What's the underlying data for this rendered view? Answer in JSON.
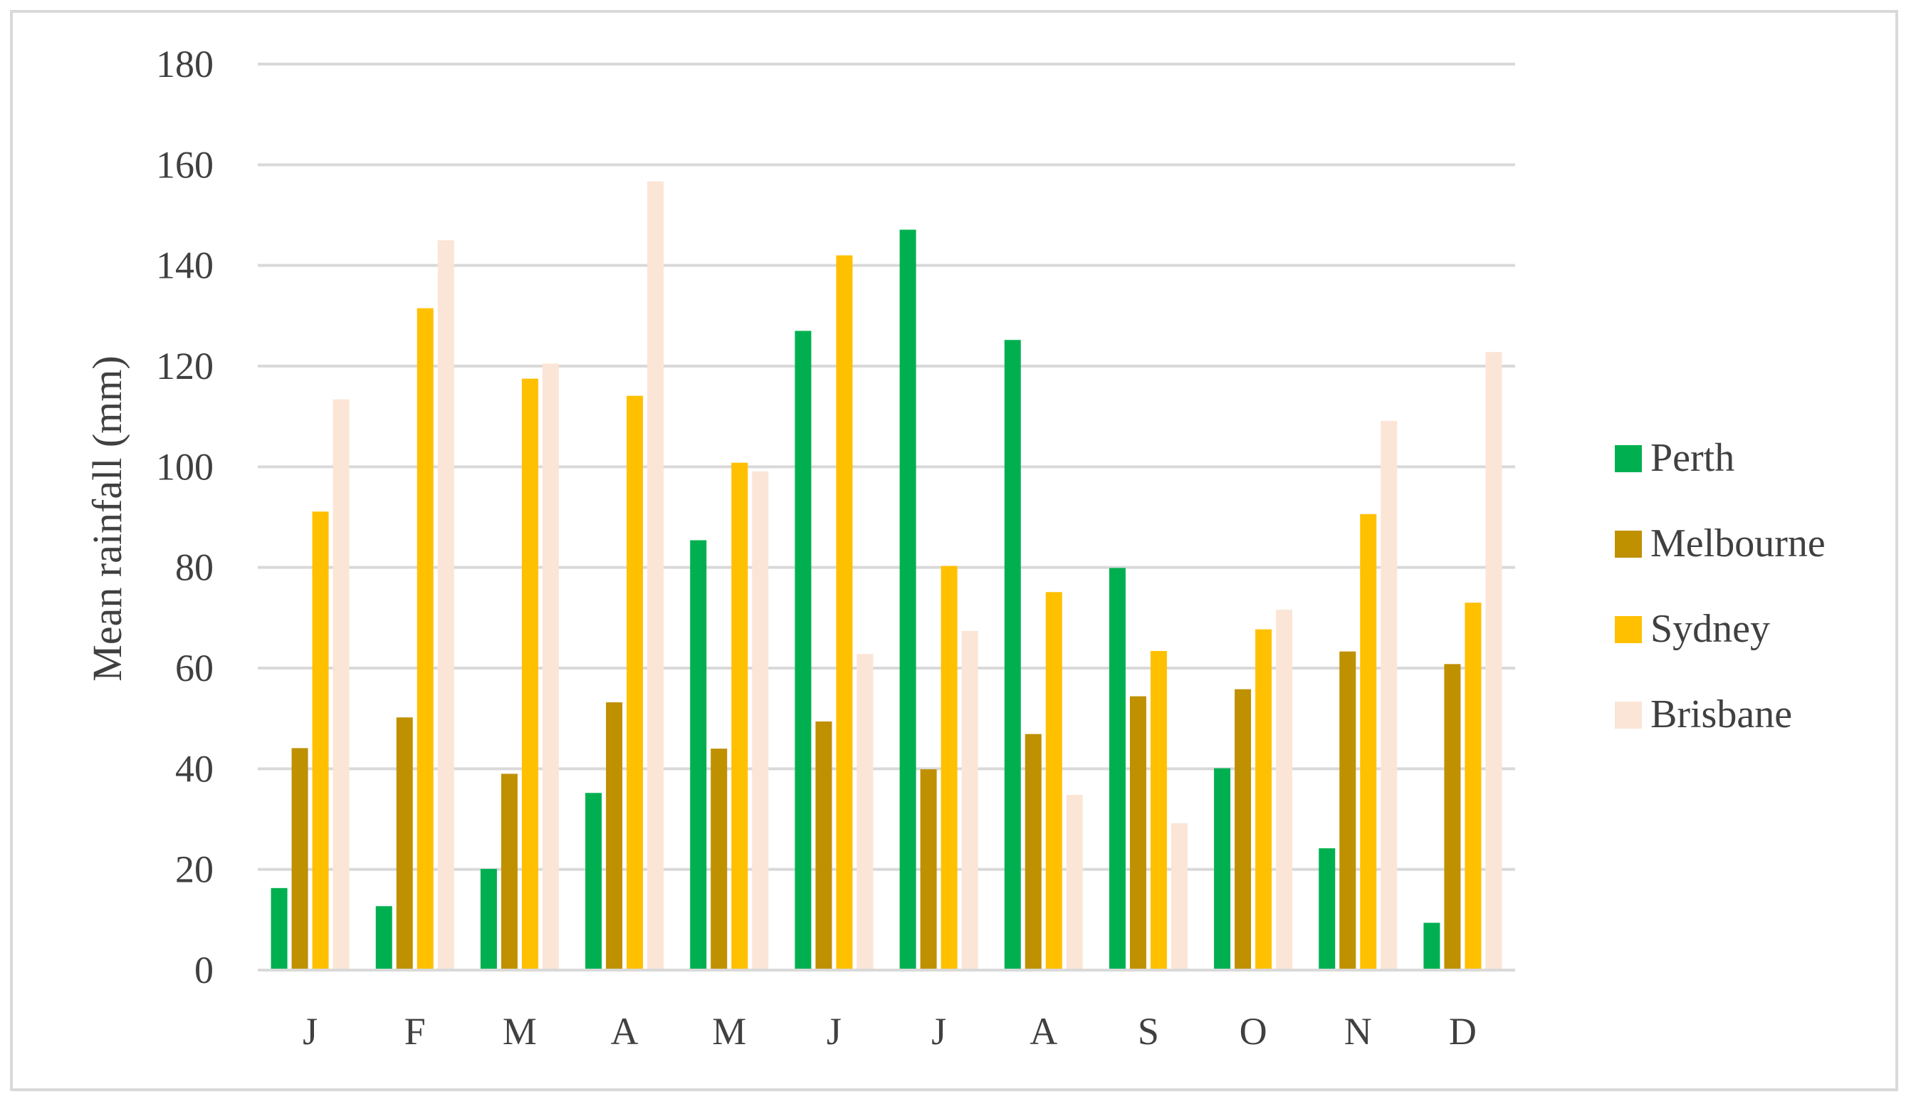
{
  "chart_data": {
    "type": "bar",
    "title": "",
    "xlabel": "",
    "ylabel": "Mean rainfall (mm)",
    "categories": [
      "J",
      "F",
      "M",
      "A",
      "M",
      "J",
      "J",
      "A",
      "S",
      "O",
      "N",
      "D"
    ],
    "ylim": [
      0,
      180
    ],
    "yticks": [
      0,
      20,
      40,
      60,
      80,
      100,
      120,
      140,
      160,
      180
    ],
    "grid": true,
    "legend_position": "right",
    "series": [
      {
        "name": "Perth",
        "color": "#00b050",
        "values": [
          16.3,
          12.7,
          20.1,
          35.2,
          85.4,
          127.0,
          147.1,
          125.2,
          79.9,
          40.1,
          24.2,
          9.4
        ]
      },
      {
        "name": "Melbourne",
        "color": "#bf9000",
        "values": [
          44.1,
          50.2,
          39.0,
          53.2,
          44.0,
          49.4,
          39.9,
          46.9,
          54.4,
          55.8,
          63.3,
          60.8
        ]
      },
      {
        "name": "Sydney",
        "color": "#ffc000",
        "values": [
          91.1,
          131.5,
          117.5,
          114.1,
          100.8,
          142.0,
          80.3,
          75.1,
          63.4,
          67.7,
          90.6,
          73.0
        ]
      },
      {
        "name": "Brisbane",
        "color": "#fbe5d6",
        "values": [
          113.4,
          145.0,
          120.5,
          156.7,
          99.1,
          62.8,
          67.4,
          34.8,
          29.2,
          71.6,
          109.1,
          122.8
        ]
      }
    ]
  }
}
